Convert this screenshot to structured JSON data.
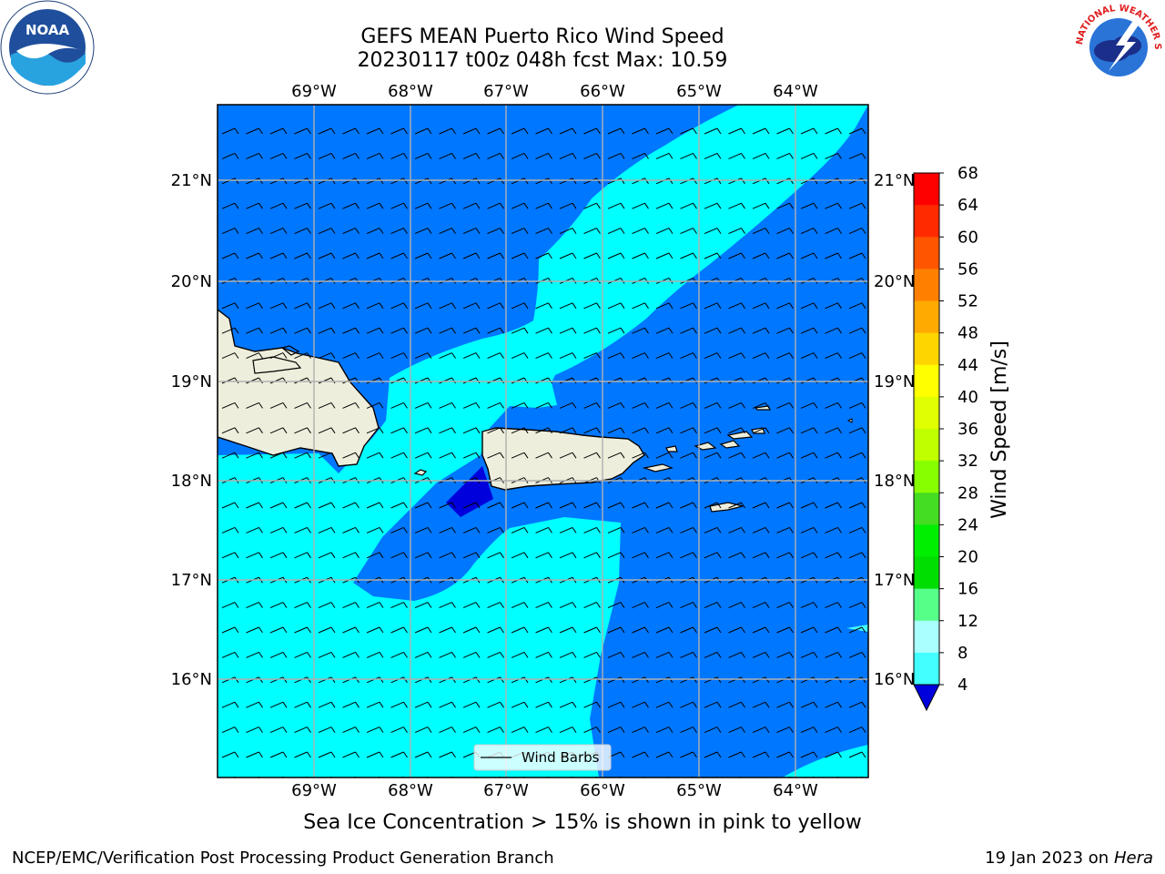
{
  "header": {
    "title_line1": "GEFS MEAN Puerto Rico Wind Speed",
    "title_line2": "20230117 t00z 048h fcst   Max: 10.59"
  },
  "logos": {
    "left": "noaa-logo",
    "left_text": "NOAA",
    "right": "nws-logo",
    "right_text": "NATIONAL WEATHER SERVICE"
  },
  "map": {
    "lon_labels": [
      "69°W",
      "68°W",
      "67°W",
      "66°W",
      "65°W",
      "64°W"
    ],
    "lat_labels": [
      "21°N",
      "20°N",
      "19°N",
      "18°N",
      "17°N",
      "16°N"
    ],
    "colors": {
      "land": "#eeeedd",
      "band_4_8": "#0077ff",
      "band_8_12": "#00ffff",
      "band_below_4": "#0000dd",
      "band_12_16": "#44ffff",
      "coast": "#000000",
      "grid": "#b0b0b0"
    },
    "legend_label": "Wind Barbs"
  },
  "colorbar": {
    "label": "Wind Speed [m/s]",
    "ticks": [
      "68",
      "64",
      "60",
      "56",
      "52",
      "48",
      "44",
      "40",
      "36",
      "32",
      "28",
      "24",
      "20",
      "16",
      "12",
      "8",
      "4"
    ],
    "colors": [
      "#ff0000",
      "#ff2a00",
      "#ff5500",
      "#ff8000",
      "#ffaa00",
      "#ffd500",
      "#ffff00",
      "#e0ff00",
      "#c0ff00",
      "#88ff00",
      "#44dd22",
      "#00ee00",
      "#00dd00",
      "#55ff88",
      "#aaffff",
      "#44ffff",
      "#00ffff",
      "#0077ff"
    ],
    "extend_color": "#0000dd"
  },
  "footer": {
    "note": "Sea Ice Concentration > 15% is shown in pink to yellow",
    "left": "NCEP/EMC/Verification Post Processing Product Generation Branch",
    "right_prefix": "19 Jan 2023 on ",
    "right_machine": "Hera"
  }
}
